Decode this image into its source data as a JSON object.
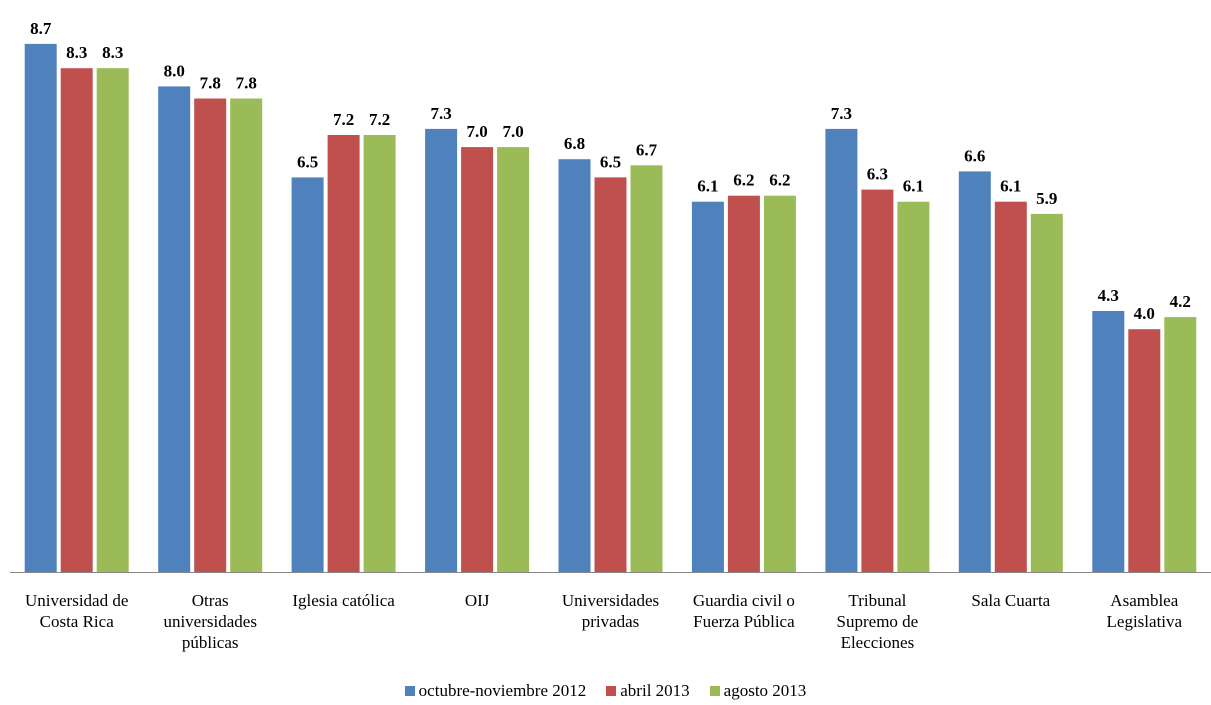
{
  "chart_data": {
    "type": "bar",
    "title": "",
    "xlabel": "",
    "ylabel": "",
    "ylim": [
      0,
      9
    ],
    "grid": false,
    "legend_position": "bottom",
    "categories": [
      [
        "Universidad de",
        "Costa Rica"
      ],
      [
        "Otras",
        "universidades",
        "públicas"
      ],
      [
        "Iglesia católica"
      ],
      [
        "OIJ"
      ],
      [
        "Universidades",
        "privadas"
      ],
      [
        "Guardia civil o",
        "Fuerza Pública"
      ],
      [
        "Tribunal",
        "Supremo de",
        "Elecciones"
      ],
      [
        "Sala Cuarta"
      ],
      [
        "Asamblea",
        "Legislativa"
      ]
    ],
    "series": [
      {
        "name": "octubre-noviembre 2012",
        "color": "#4F81BD",
        "values": [
          8.7,
          8.0,
          6.5,
          7.3,
          6.8,
          6.1,
          7.3,
          6.6,
          4.3
        ]
      },
      {
        "name": "abril 2013",
        "color": "#C0504D",
        "values": [
          8.3,
          7.8,
          7.2,
          7.0,
          6.5,
          6.2,
          6.3,
          6.1,
          4.0
        ]
      },
      {
        "name": "agosto 2013",
        "color": "#9BBB59",
        "values": [
          8.3,
          7.8,
          7.2,
          7.0,
          6.7,
          6.2,
          6.1,
          5.9,
          4.2
        ]
      }
    ]
  }
}
